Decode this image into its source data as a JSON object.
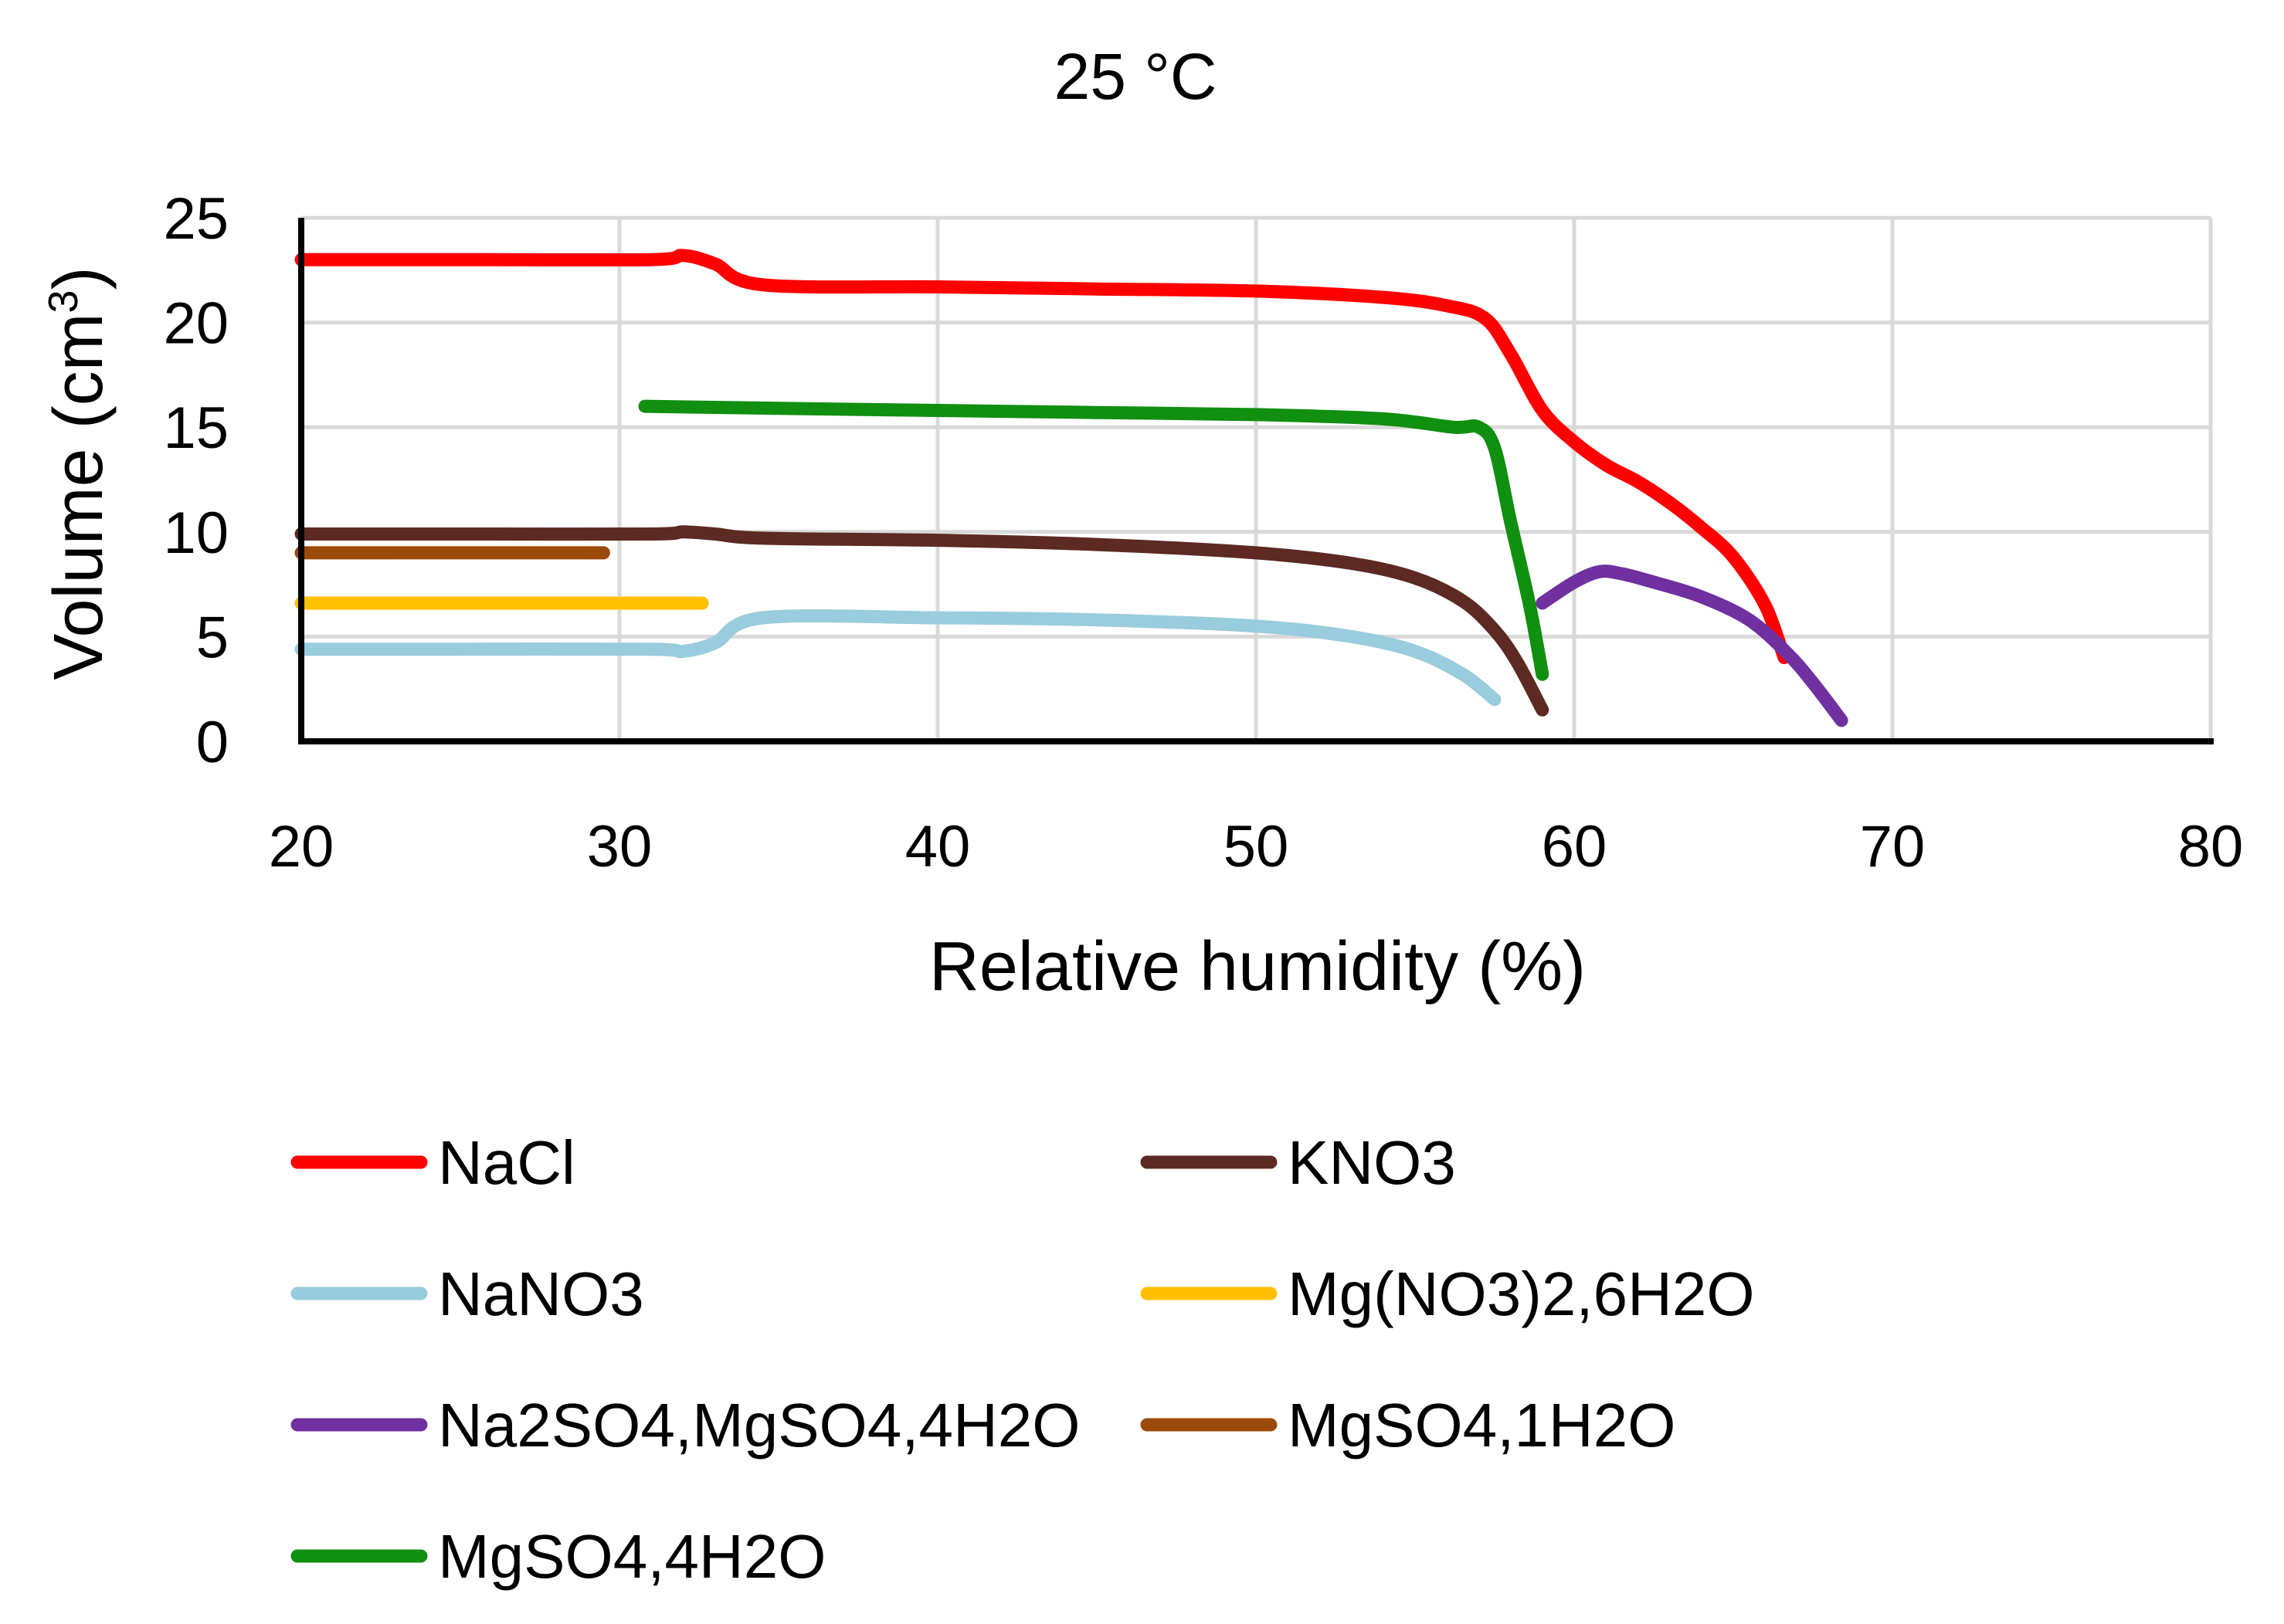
{
  "chart_data": {
    "type": "line",
    "title": "25 °C",
    "xlabel": "Relative humidity (%)",
    "ylabel_main": "Volume (cm",
    "ylabel_sup": "3",
    "ylabel_end": ")",
    "xlim": [
      20,
      80
    ],
    "ylim": [
      0,
      25
    ],
    "xticks": [
      20,
      30,
      40,
      50,
      60,
      70,
      80
    ],
    "yticks": [
      0,
      5,
      10,
      15,
      20,
      25
    ],
    "grid": true,
    "legend_position": "bottom",
    "series": [
      {
        "name": "NaCl",
        "color": "#ff0000",
        "x": [
          20,
          25,
          31,
          32,
          33,
          34.5,
          40,
          45,
          50,
          54,
          56,
          57.2,
          58,
          59,
          60,
          61,
          62,
          63,
          64,
          65,
          66,
          66.6
        ],
        "y": [
          23,
          23,
          23,
          23.2,
          22.8,
          21.8,
          21.7,
          21.6,
          21.5,
          21.2,
          20.8,
          20.2,
          18.5,
          15.8,
          14.3,
          13.2,
          12.4,
          11.4,
          10.2,
          8.8,
          6.5,
          4.0
        ]
      },
      {
        "name": "KNO3",
        "color": "#5c2a22",
        "x": [
          20,
          25,
          31,
          32,
          33,
          34.5,
          40,
          45,
          50,
          53,
          55,
          56.5,
          57.5,
          58.2,
          59
        ],
        "y": [
          9.9,
          9.9,
          9.9,
          10.0,
          9.9,
          9.7,
          9.6,
          9.4,
          9.0,
          8.5,
          7.8,
          6.7,
          5.3,
          3.8,
          1.5
        ]
      },
      {
        "name": "NaNO3",
        "color": "#99ccdd",
        "x": [
          20,
          25,
          31,
          32,
          33,
          34.5,
          40,
          45,
          50,
          53,
          55,
          56.5,
          57.5
        ],
        "y": [
          4.4,
          4.4,
          4.4,
          4.3,
          4.7,
          5.9,
          5.9,
          5.8,
          5.5,
          5.0,
          4.3,
          3.2,
          2.0
        ]
      },
      {
        "name": "Mg(NO3)2,6H2O",
        "color": "#ffc000",
        "x": [
          20,
          32.6
        ],
        "y": [
          6.6,
          6.6
        ]
      },
      {
        "name": "Na2SO4,MgSO4,4H2O",
        "color": "#7030a0",
        "x": [
          59,
          60,
          60.8,
          61.5,
          62.5,
          64,
          65.5,
          66.7,
          67.5,
          68.4
        ],
        "y": [
          6.6,
          7.6,
          8.1,
          8.0,
          7.6,
          6.9,
          5.8,
          4.2,
          2.8,
          1.0
        ]
      },
      {
        "name": "MgSO4,1H2O",
        "color": "#9c4a0a",
        "x": [
          20,
          29.5
        ],
        "y": [
          9.0,
          9.0
        ]
      },
      {
        "name": "MgSO4,4H2O",
        "color": "#108f10",
        "x": [
          30.8,
          35,
          40,
          45,
          50,
          54,
          56.2,
          57,
          57.5,
          58,
          58.6,
          59
        ],
        "y": [
          16,
          15.9,
          15.8,
          15.7,
          15.6,
          15.4,
          15.0,
          15.0,
          14.0,
          10.5,
          6.5,
          3.2
        ]
      }
    ]
  }
}
